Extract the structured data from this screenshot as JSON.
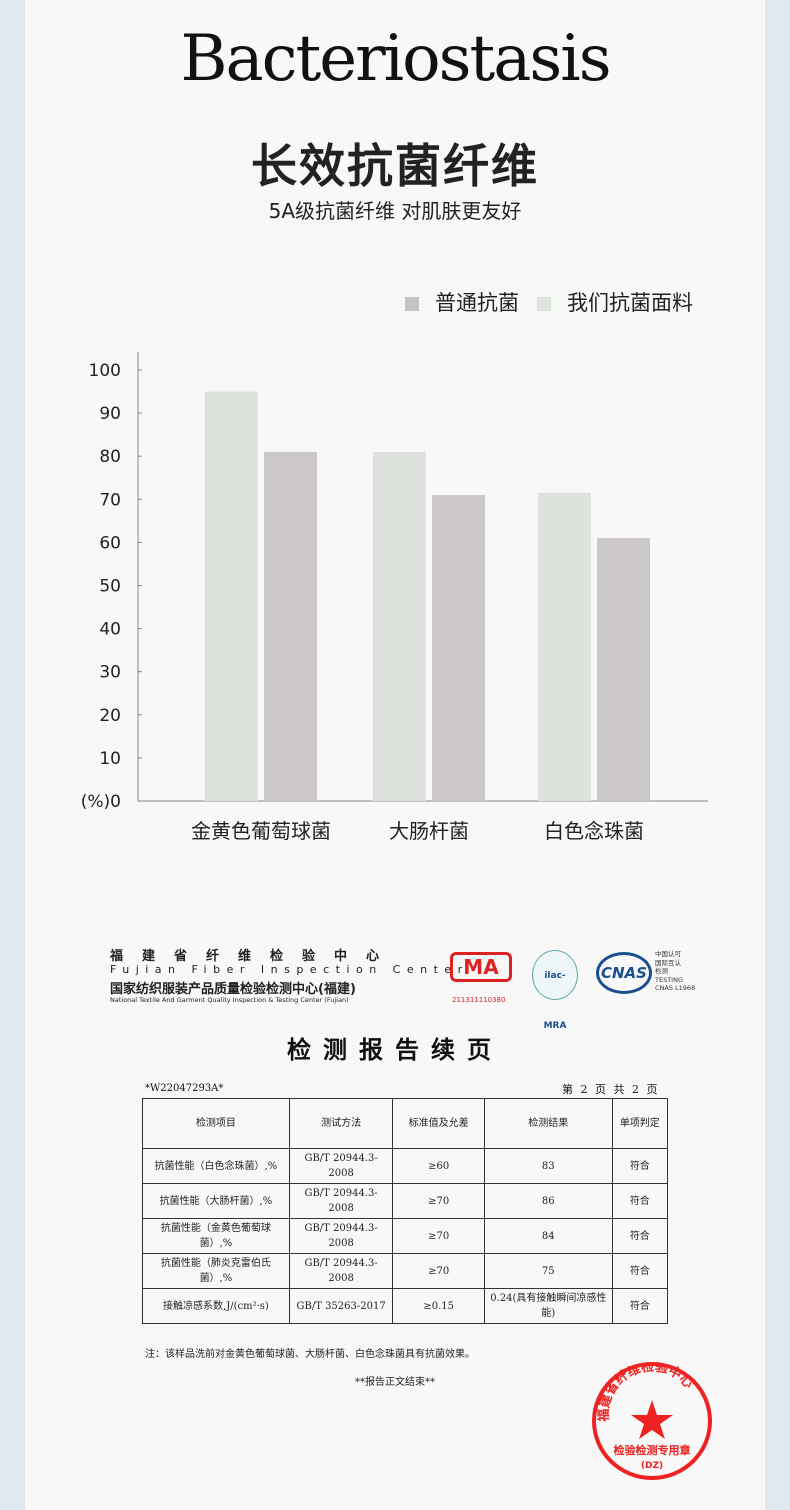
{
  "header": {
    "title_en": "Bacteriostasis",
    "title_cn": "长效抗菌纤维",
    "subtitle": "5A级抗菌纤维 对肌肤更友好"
  },
  "chart_data": {
    "type": "bar",
    "categories": [
      "金黄色葡萄球菌",
      "大肠杆菌",
      "白色念珠菌"
    ],
    "series": [
      {
        "name": "我们抗菌面料",
        "color": "#dde3dc",
        "values": [
          95,
          81,
          71.5
        ]
      },
      {
        "name": "普通抗菌",
        "color": "#cbc7c6",
        "values": [
          81,
          71,
          61
        ]
      }
    ],
    "legend_order": [
      "普通抗菌",
      "我们抗菌面料"
    ],
    "legend_placement": "top-right",
    "yticks": [
      "(%)0",
      "10",
      "20",
      "30",
      "40",
      "50",
      "60",
      "70",
      "80",
      "90",
      "100"
    ],
    "ylim": [
      0,
      100
    ],
    "grid": false
  },
  "report": {
    "org_cn": "福建省纤维检验中心",
    "org_en": "Fujian Fiber Inspection Center",
    "org2_cn": "国家纺织服装产品质量检验检测中心(福建)",
    "org2_en": "National Textile And Garment Quality Inspection & Testing Center (Fujian)",
    "cma": "MA",
    "cma_number": "211311110380",
    "ilac": "ilac-MRA",
    "cnas": "CNAS",
    "cnas_text": [
      "中国认可",
      "国际互认",
      "检测",
      "TESTING",
      "CNAS L1968"
    ],
    "title": "检测报告续页",
    "report_no": "*W22047293A*",
    "page_info": "第 2 页 共 2 页",
    "columns": [
      "检测项目",
      "测试方法",
      "标准值及允差",
      "检测结果",
      "单项判定"
    ],
    "rows": [
      [
        "抗菌性能（白色念珠菌）,%",
        "GB/T 20944.3-2008",
        "≥60",
        "83",
        "符合"
      ],
      [
        "抗菌性能（大肠杆菌）,%",
        "GB/T 20944.3-2008",
        "≥70",
        "86",
        "符合"
      ],
      [
        "抗菌性能（金黄色葡萄球菌）,%",
        "GB/T 20944.3-2008",
        "≥70",
        "84",
        "符合"
      ],
      [
        "抗菌性能（肺炎克雷伯氏菌）,%",
        "GB/T 20944.3-2008",
        "≥70",
        "75",
        "符合"
      ],
      [
        "接触凉感系数,J/(cm²·s)",
        "GB/T 35263-2017",
        "≥0.15",
        "0.24(具有接触瞬间凉感性能)",
        "符合"
      ]
    ],
    "note": "注：该样品洗前对金黄色葡萄球菌、大肠杆菌、白色念珠菌具有抗菌效果。",
    "end": "**报告正文结束**",
    "stamp_top": "福建省纤维检验中心",
    "stamp_bottom": "检验检测专用章",
    "stamp_code": "(DZ)"
  }
}
